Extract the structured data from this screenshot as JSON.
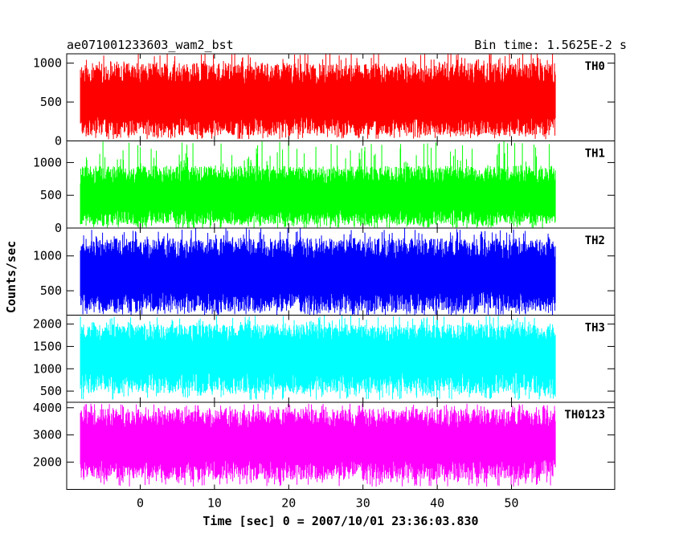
{
  "chart_data": {
    "type": "line",
    "title_left": "ae071001233603_wam2_bst",
    "title_right": "Bin time: 1.5625E-2 s",
    "xlabel": "Time [sec] 0 = 2007/10/01 23:36:03.830",
    "ylabel": "Counts/sec",
    "xlim": [
      -9.9,
      63.9
    ],
    "x_data_range": [
      -8.05,
      55.95
    ],
    "xticks": [
      0,
      10,
      20,
      30,
      40,
      50
    ],
    "xtick_labels": [
      "0",
      "10",
      "20",
      "30",
      "40",
      "50"
    ],
    "grid": false,
    "panels": [
      {
        "name": "TH0",
        "color": "#ff0000",
        "ylim": [
          0,
          1120
        ],
        "yticks": [
          0,
          500,
          1000
        ],
        "ytick_labels": [
          "0",
          "500",
          "1000"
        ],
        "level": 500,
        "typical_range": [
          70,
          1000
        ],
        "extreme_range": [
          20,
          1150
        ]
      },
      {
        "name": "TH1",
        "color": "#00ff00",
        "ylim": [
          0,
          1330
        ],
        "yticks": [
          0,
          500,
          1000
        ],
        "ytick_labels": [
          "0",
          "500",
          "1000"
        ],
        "level": 460,
        "typical_range": [
          50,
          950
        ],
        "extreme_range": [
          0,
          1330
        ]
      },
      {
        "name": "TH2",
        "color": "#0000ff",
        "ylim": [
          150,
          1400
        ],
        "yticks": [
          500,
          1000
        ],
        "ytick_labels": [
          "500",
          "1000"
        ],
        "level": 720,
        "typical_range": [
          200,
          1250
        ],
        "extreme_range": [
          150,
          1400
        ]
      },
      {
        "name": "TH3",
        "color": "#00ffff",
        "ylim": [
          250,
          2200
        ],
        "yticks": [
          500,
          1000,
          1500,
          2000
        ],
        "ytick_labels": [
          "500",
          "1000",
          "1500",
          "2000"
        ],
        "level": 1300,
        "typical_range": [
          450,
          2000
        ],
        "extreme_range": [
          300,
          2200
        ]
      },
      {
        "name": "TH0123",
        "color": "#ff00ff",
        "ylim": [
          1000,
          4200
        ],
        "yticks": [
          2000,
          3000,
          4000
        ],
        "ytick_labels": [
          "2000",
          "3000",
          "4000"
        ],
        "level": 2700,
        "typical_range": [
          1350,
          3950
        ],
        "extreme_range": [
          1100,
          4150
        ]
      }
    ]
  }
}
